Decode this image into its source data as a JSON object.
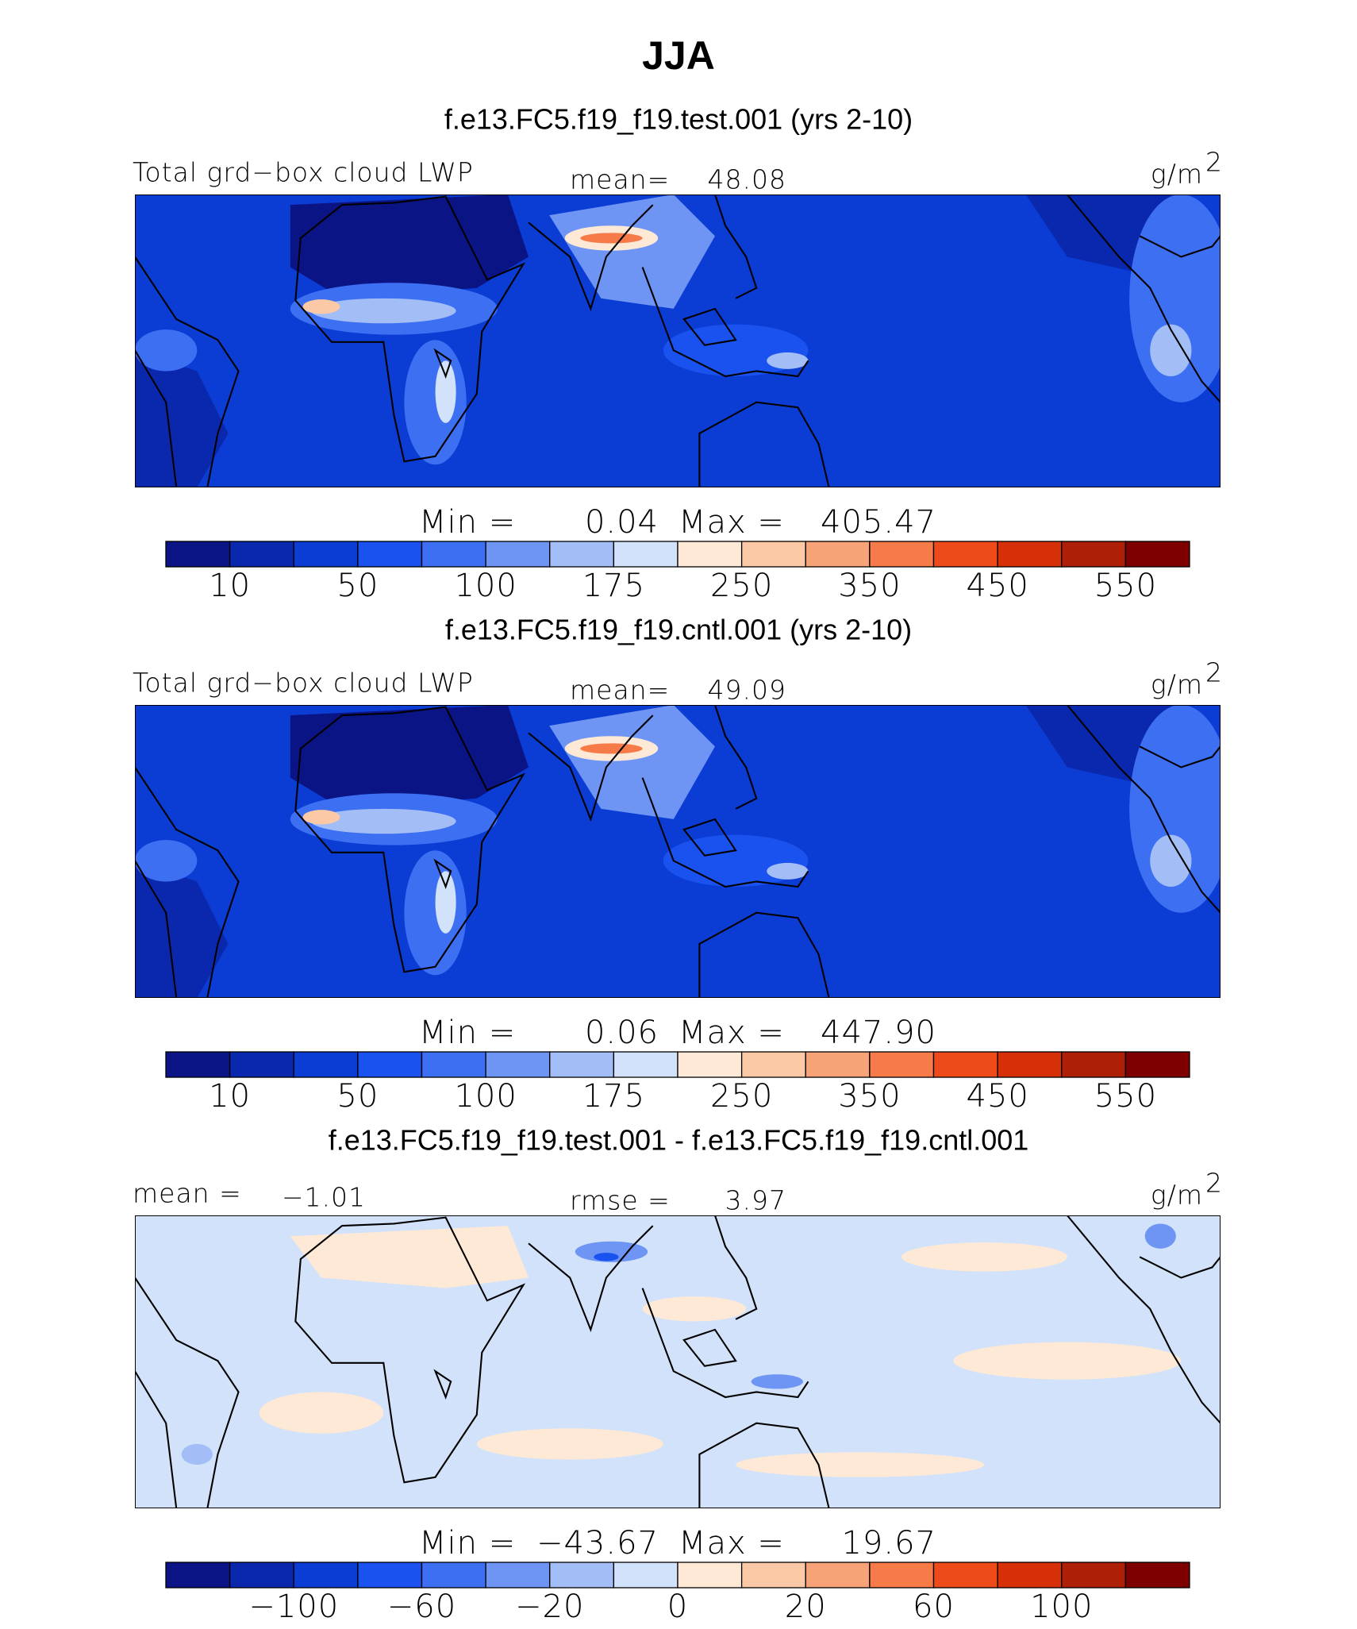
{
  "title": "JJA",
  "panels": [
    {
      "subtitle": "f.e13.FC5.f19_f19.test.001 (yrs 2-10)",
      "left_label": "Total grd−box cloud LWP",
      "center_label": "mean=",
      "center_value": "48.08",
      "units": "g/m",
      "units_exponent": "2",
      "min_label": "Min =",
      "min_value": "0.04",
      "max_label": "Max =",
      "max_value": "405.47",
      "colorbar": {
        "colors": [
          "#0a1485",
          "#0a28ad",
          "#0b3cd4",
          "#1a52ef",
          "#3d6ff3",
          "#6e95f3",
          "#a3bef6",
          "#d2e2fa",
          "#fde9d6",
          "#fbc9a6",
          "#f8a277",
          "#f77a49",
          "#ef4b1a",
          "#d73009",
          "#ad1f07",
          "#7f0000"
        ],
        "labels": [
          10,
          50,
          100,
          175,
          250,
          350,
          450,
          550
        ]
      }
    },
    {
      "subtitle": "f.e13.FC5.f19_f19.cntl.001 (yrs 2-10)",
      "left_label": "Total grd−box cloud LWP",
      "center_label": "mean=",
      "center_value": "49.09",
      "units": "g/m",
      "units_exponent": "2",
      "min_label": "Min =",
      "min_value": "0.06",
      "max_label": "Max =",
      "max_value": "447.90",
      "colorbar": {
        "colors": [
          "#0a1485",
          "#0a28ad",
          "#0b3cd4",
          "#1a52ef",
          "#3d6ff3",
          "#6e95f3",
          "#a3bef6",
          "#d2e2fa",
          "#fde9d6",
          "#fbc9a6",
          "#f8a277",
          "#f77a49",
          "#ef4b1a",
          "#d73009",
          "#ad1f07",
          "#7f0000"
        ],
        "labels": [
          10,
          50,
          100,
          175,
          250,
          350,
          450,
          550
        ]
      }
    },
    {
      "subtitle": "f.e13.FC5.f19_f19.test.001 - f.e13.FC5.f19_f19.cntl.001",
      "left_label": "mean =",
      "left_value": "−1.01",
      "center_label": "rmse =",
      "center_value": "3.97",
      "units": "g/m",
      "units_exponent": "2",
      "min_label": "Min =",
      "min_value": "−43.67",
      "max_label": "Max =",
      "max_value": "19.67",
      "colorbar": {
        "colors": [
          "#0a1485",
          "#0a28ad",
          "#0b3cd4",
          "#1a52ef",
          "#3d6ff3",
          "#6e95f3",
          "#a3bef6",
          "#d2e2fa",
          "#fde9d6",
          "#fbc9a6",
          "#f8a277",
          "#f77a49",
          "#ef4b1a",
          "#d73009",
          "#ad1f07",
          "#7f0000"
        ],
        "labels": [
          {
            "value": -100,
            "label": "−100"
          },
          {
            "value": -60,
            "label": "−60"
          },
          {
            "value": -20,
            "label": "−20"
          },
          0,
          20,
          60,
          100
        ]
      }
    }
  ]
}
